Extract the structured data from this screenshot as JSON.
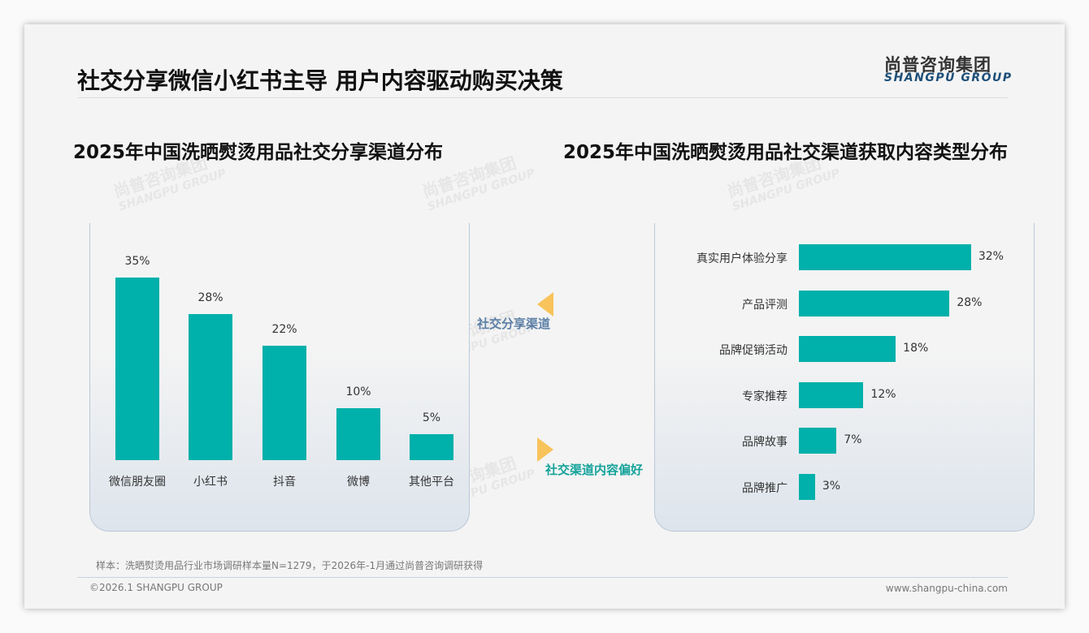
{
  "header": {
    "title": "社交分享微信小红书主导 用户内容驱动购买决策",
    "logo_cn": "尚普咨询集团",
    "logo_en": "SHANGPU GROUP"
  },
  "connectors": {
    "left_label": "社交分享渠道",
    "right_label": "社交渠道内容偏好"
  },
  "footer": {
    "note": "样本：洗晒熨烫用品行业市场调研样本量N=1279，于2026年-1月通过尚普咨询调研获得",
    "copyright": "©2026.1 SHANGPU GROUP",
    "website": "www.shangpu-china.com"
  },
  "colors": {
    "bar": "#00b0aa",
    "accent": "#f8c35a"
  },
  "chart_data": [
    {
      "type": "bar",
      "title": "2025年中国洗晒熨烫用品社交分享渠道分布",
      "categories": [
        "微信朋友圈",
        "小红书",
        "抖音",
        "微博",
        "其他平台"
      ],
      "values": [
        35,
        28,
        22,
        10,
        5
      ],
      "labels": [
        "35%",
        "28%",
        "22%",
        "10%",
        "5%"
      ],
      "unit": "%"
    },
    {
      "type": "bar",
      "orientation": "horizontal",
      "title": "2025年中国洗晒熨烫用品社交渠道获取内容类型分布",
      "categories": [
        "真实用户体验分享",
        "产品评测",
        "品牌促销活动",
        "专家推荐",
        "品牌故事",
        "品牌推广"
      ],
      "values": [
        32,
        28,
        18,
        12,
        7,
        3
      ],
      "labels": [
        "32%",
        "28%",
        "18%",
        "12%",
        "7%",
        "3%"
      ],
      "unit": "%"
    }
  ]
}
